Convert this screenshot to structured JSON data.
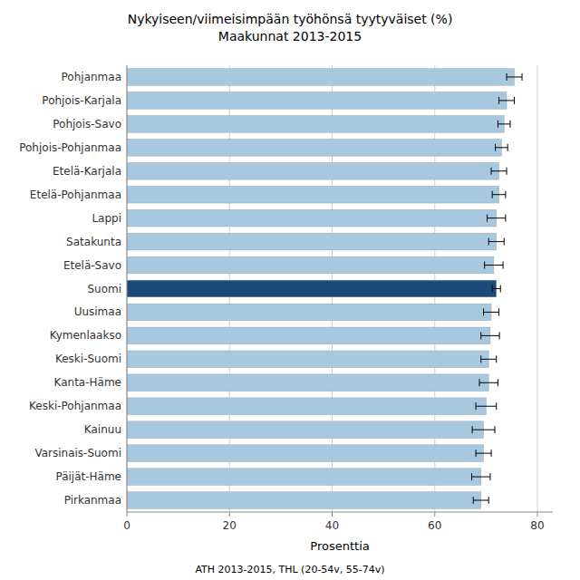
{
  "chart_data": {
    "type": "bar",
    "orientation": "horizontal",
    "title": "Nykyiseen/viimeisimpään työhönsä tyytyväiset (%)\nMaakunnat 2013-2015",
    "xlabel": "Prosenttia",
    "annotations": [
      "ATH 2013-2015, THL (20-54v, 55-74v)"
    ],
    "categories": [
      "Pohjanmaa",
      "Pohjois-Karjala",
      "Pohjois-Savo",
      "Pohjois-Pohjanmaa",
      "Etelä-Karjala",
      "Etelä-Pohjanmaa",
      "Lappi",
      "Satakunta",
      "Etelä-Savo",
      "Suomi",
      "Uusimaa",
      "Kymenlaakso",
      "Keski-Suomi",
      "Kanta-Häme",
      "Keski-Pohjanmaa",
      "Kainuu",
      "Varsinais-Suomi",
      "Päijät-Häme",
      "Pirkanmaa"
    ],
    "values": [
      75.5,
      74.0,
      73.5,
      73.0,
      72.5,
      72.5,
      72.0,
      72.0,
      71.5,
      72.0,
      71.0,
      70.8,
      70.5,
      70.5,
      70.0,
      69.5,
      69.5,
      69.0,
      69.0
    ],
    "errors": [
      1.5,
      1.5,
      1.2,
      1.2,
      1.5,
      1.3,
      1.8,
      1.5,
      1.8,
      0.8,
      1.5,
      1.8,
      1.5,
      1.8,
      2.0,
      2.2,
      1.5,
      1.8,
      1.5
    ],
    "colors": [
      "#a8c8e0",
      "#a8c8e0",
      "#a8c8e0",
      "#a8c8e0",
      "#a8c8e0",
      "#a8c8e0",
      "#a8c8e0",
      "#a8c8e0",
      "#a8c8e0",
      "#1a4a7a",
      "#a8c8e0",
      "#a8c8e0",
      "#a8c8e0",
      "#a8c8e0",
      "#a8c8e0",
      "#a8c8e0",
      "#a8c8e0",
      "#a8c8e0",
      "#a8c8e0"
    ],
    "xlim": [
      0,
      83
    ],
    "xticks": [
      0,
      20,
      40,
      60,
      80
    ],
    "grid": true
  }
}
